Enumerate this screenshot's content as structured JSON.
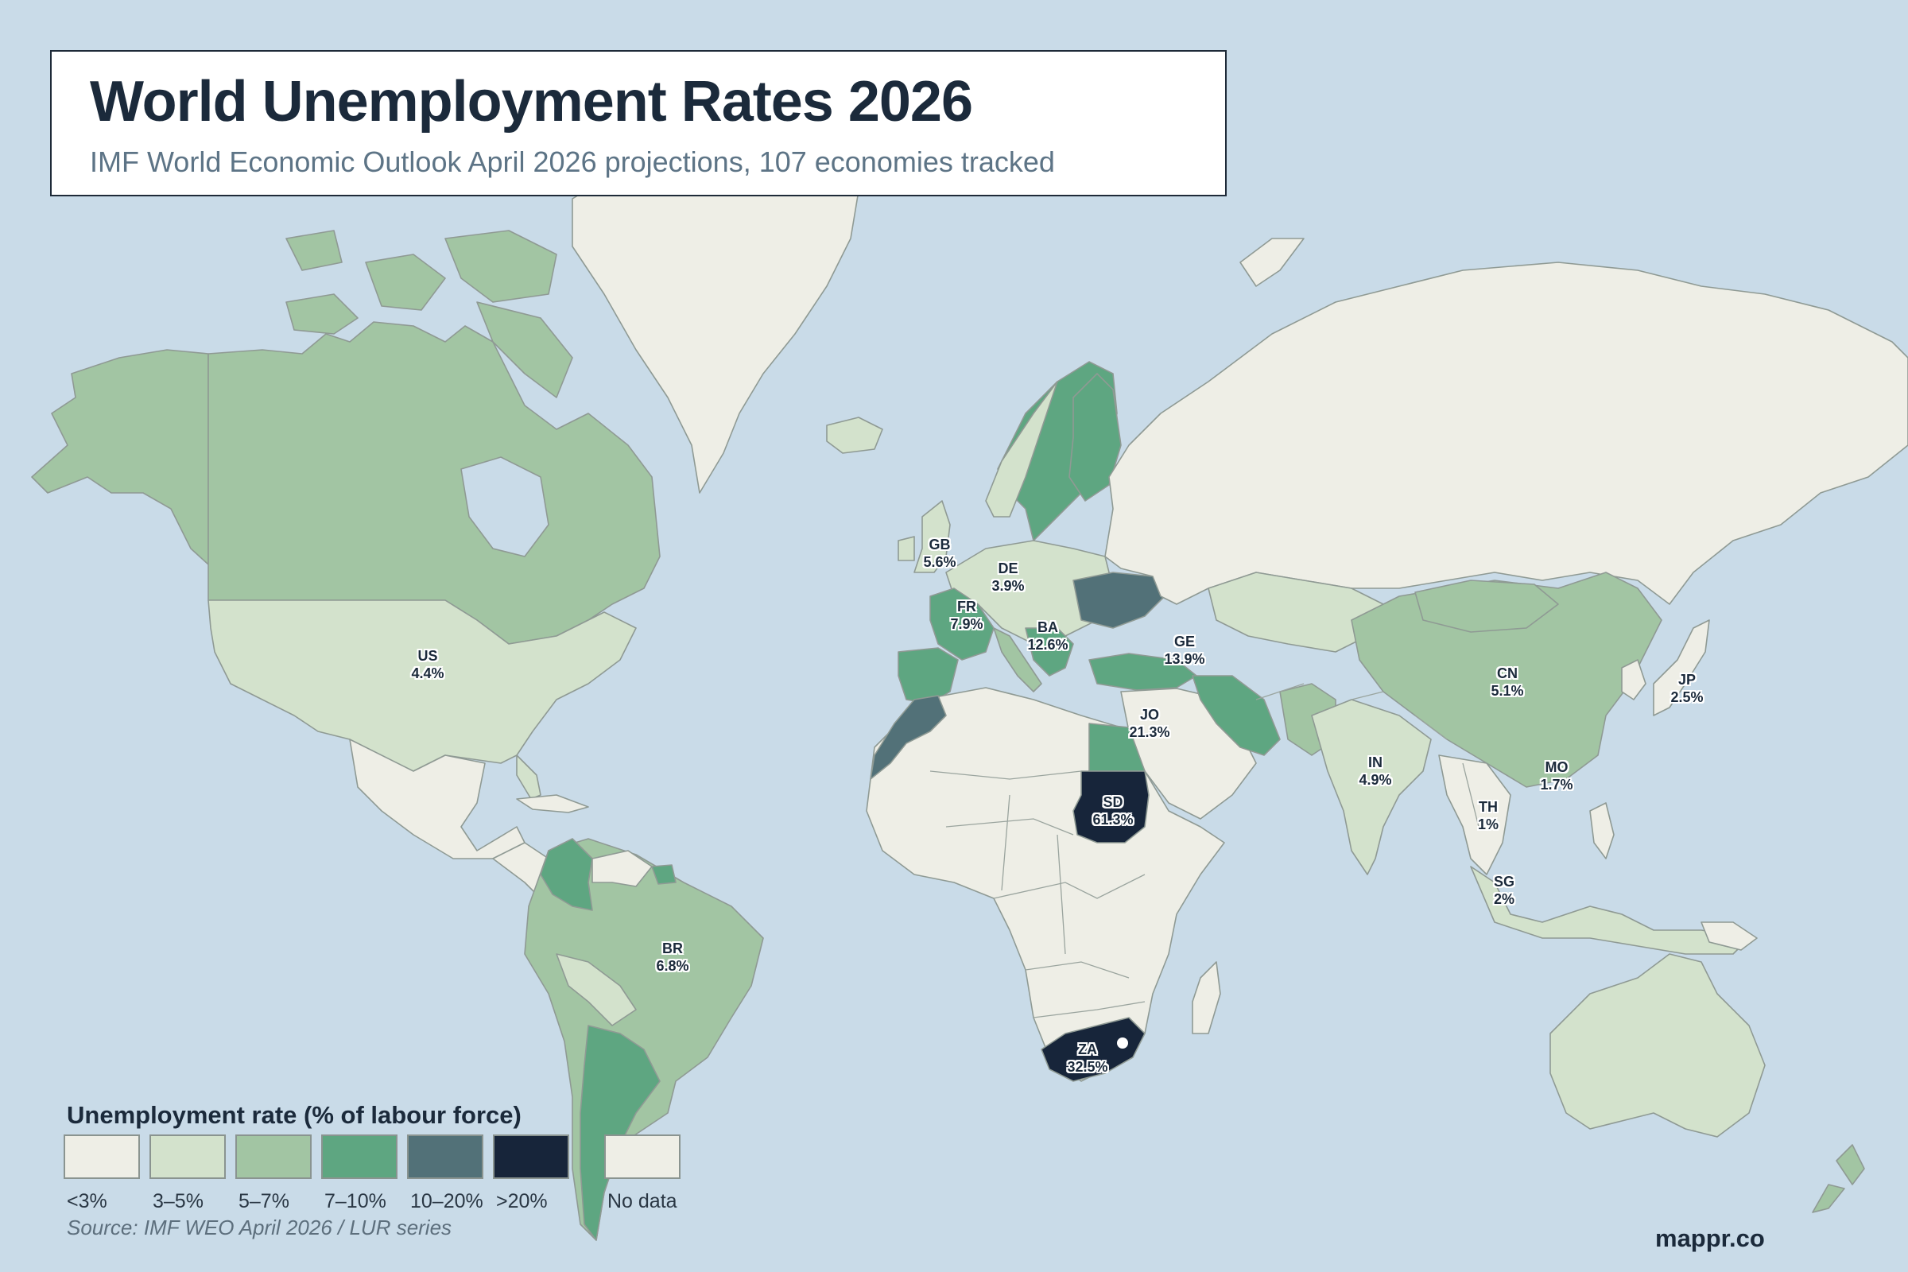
{
  "title": "World Unemployment Rates 2026",
  "subtitle": "IMF World Economic Outlook April 2026 projections, 107 economies tracked",
  "legend": {
    "title": "Unemployment rate (% of labour force)",
    "bins": [
      {
        "label": "<3%",
        "color": "#eeeee6"
      },
      {
        "label": "3–5%",
        "color": "#d3e2cc"
      },
      {
        "label": "5–7%",
        "color": "#a2c5a3"
      },
      {
        "label": "7–10%",
        "color": "#5ea681"
      },
      {
        "label": "10–20%",
        "color": "#527178"
      },
      {
        "label": ">20%",
        "color": "#17253a"
      },
      {
        "label": "No data",
        "color": "#eeeee6"
      }
    ]
  },
  "source": "Source: IMF WEO April 2026 / LUR series",
  "brand": "mappr.co",
  "colors": {
    "ocean": "#c9dbe8",
    "no_data": "#eeeee6",
    "text": "#1b2a3b"
  },
  "country_labels": [
    {
      "code": "US",
      "value": "4.4%"
    },
    {
      "code": "GB",
      "value": "5.6%"
    },
    {
      "code": "DE",
      "value": "3.9%"
    },
    {
      "code": "FR",
      "value": "7.9%"
    },
    {
      "code": "BA",
      "value": "12.6%"
    },
    {
      "code": "GE",
      "value": "13.9%"
    },
    {
      "code": "JO",
      "value": "21.3%"
    },
    {
      "code": "SD",
      "value": "61.3%"
    },
    {
      "code": "ZA",
      "value": "32.5%"
    },
    {
      "code": "BR",
      "value": "6.8%"
    },
    {
      "code": "IN",
      "value": "4.9%"
    },
    {
      "code": "CN",
      "value": "5.1%"
    },
    {
      "code": "JP",
      "value": "2.5%"
    },
    {
      "code": "MO",
      "value": "1.7%"
    },
    {
      "code": "TH",
      "value": "1%"
    },
    {
      "code": "SG",
      "value": "2%"
    }
  ]
}
